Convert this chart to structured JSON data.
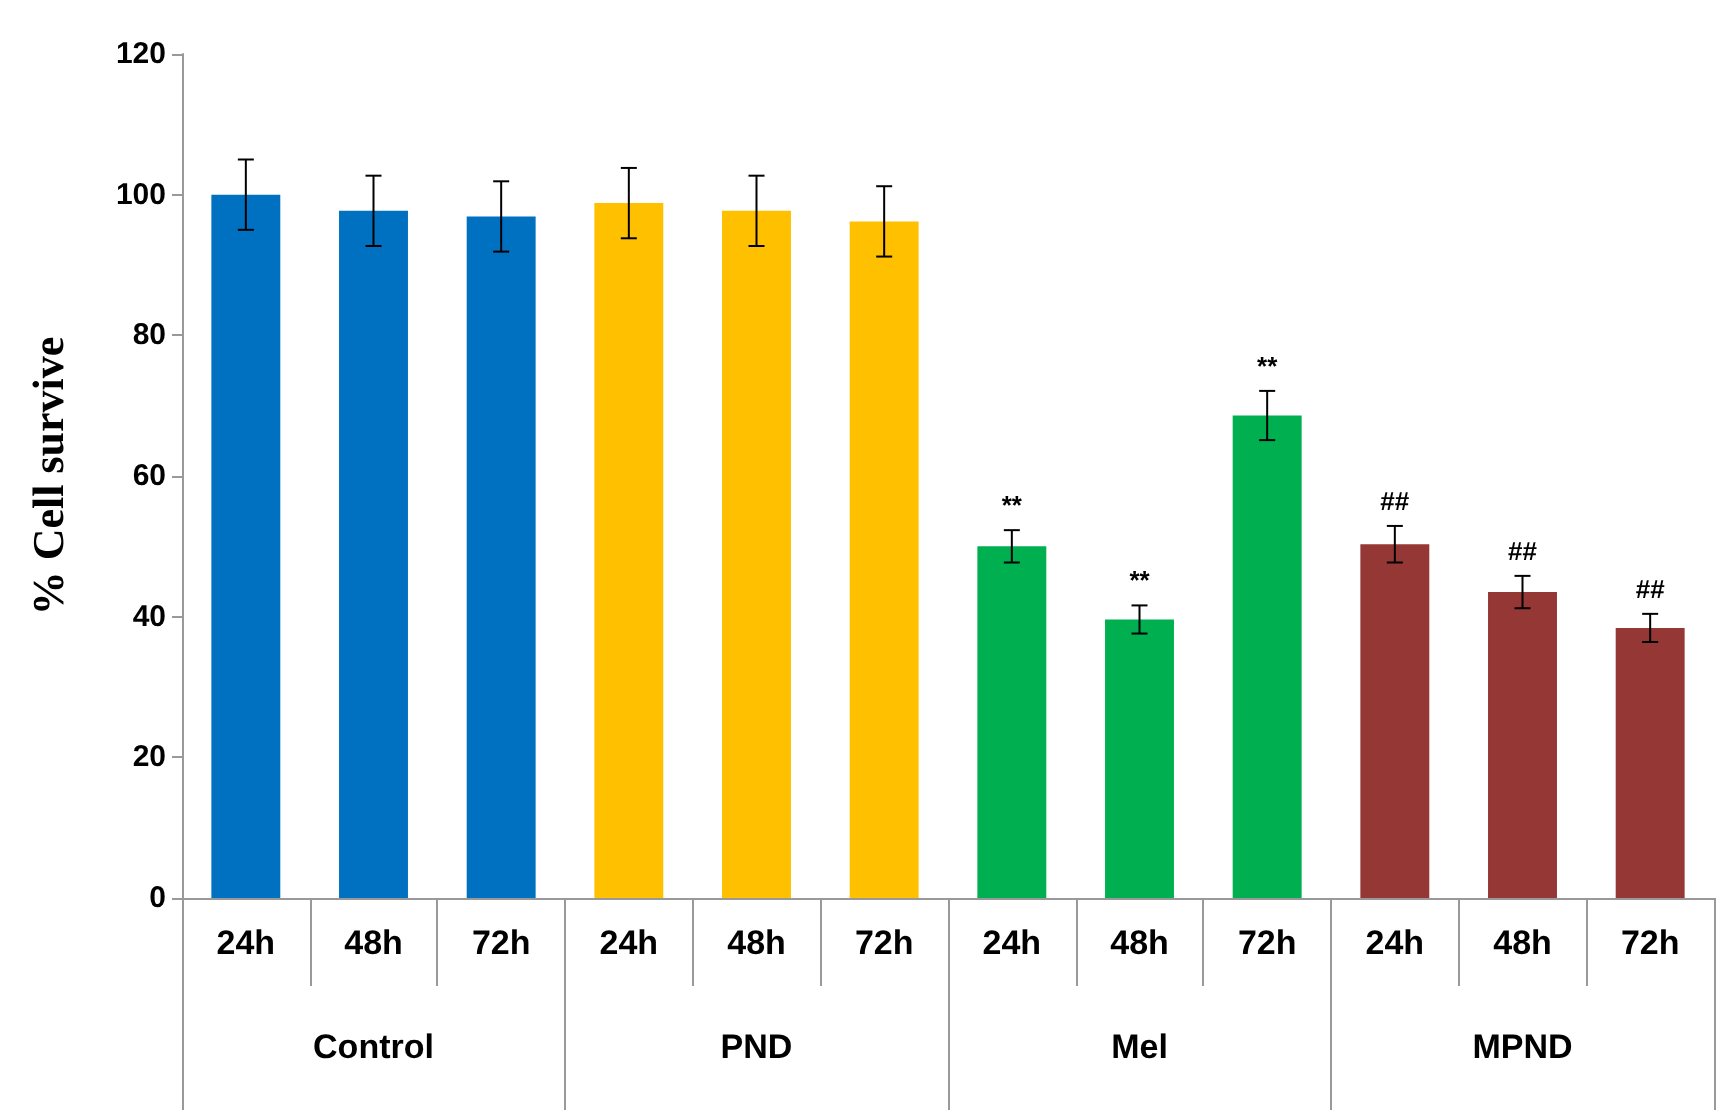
{
  "chart_data": {
    "type": "bar",
    "ylabel": "% Cell survive",
    "categories": [
      "24h",
      "48h",
      "72h",
      "24h",
      "48h",
      "72h",
      "24h",
      "48h",
      "72h",
      "24h",
      "48h",
      "72h"
    ],
    "values": [
      100,
      97.7,
      96.9,
      98.8,
      97.7,
      96.2,
      50.0,
      39.6,
      68.6,
      50.3,
      43.5,
      38.4
    ],
    "colors": [
      "#0070c0",
      "#0070c0",
      "#0070c0",
      "#ffc000",
      "#ffc000",
      "#ffc000",
      "#00b050",
      "#00b050",
      "#00b050",
      "#953735",
      "#953735",
      "#953735"
    ],
    "errors": [
      5,
      5,
      5,
      5,
      5,
      5,
      2.3,
      2,
      3.5,
      2.6,
      2.3,
      2
    ],
    "value_labels": [
      null,
      null,
      null,
      null,
      null,
      null,
      "**",
      "**",
      "**",
      "##",
      "##",
      "##"
    ],
    "annotations": [
      "Control",
      "PND",
      "Mel",
      "MPND"
    ],
    "ylim": [
      0,
      120
    ],
    "yticks": [
      0,
      20,
      40,
      60,
      80,
      100,
      120
    ],
    "grid": false
  }
}
